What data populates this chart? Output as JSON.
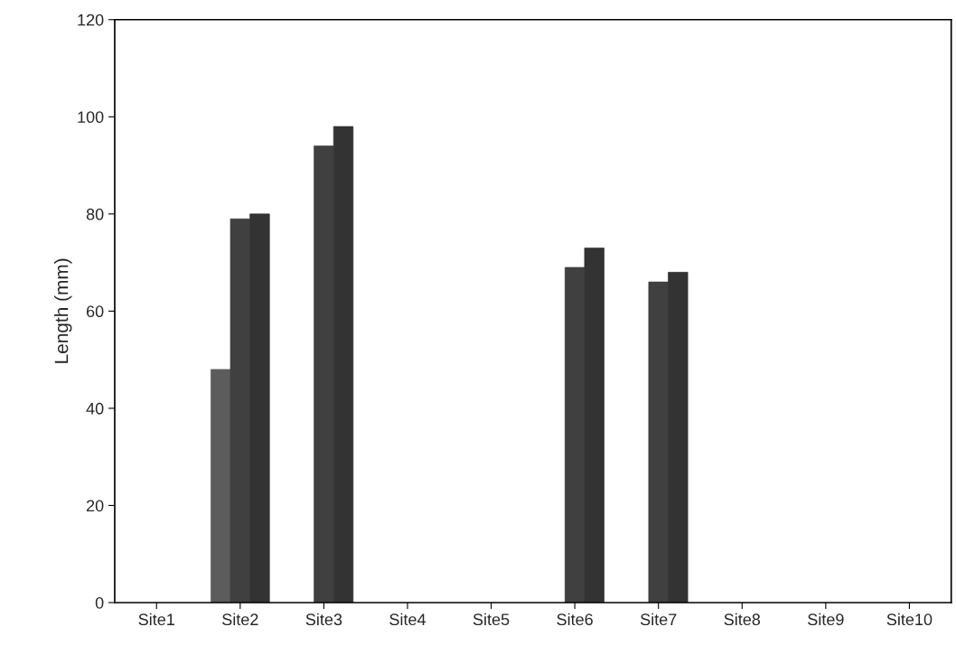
{
  "chart_data": {
    "type": "bar",
    "ylabel": "Length (mm)",
    "categories": [
      "Site1",
      "Site2",
      "Site3",
      "Site4",
      "Site5",
      "Site6",
      "Site7",
      "Site8",
      "Site9",
      "Site10"
    ],
    "series": [
      {
        "color": "#5c5c5c",
        "values": [
          null,
          48,
          null,
          null,
          null,
          null,
          null,
          null,
          null,
          null
        ]
      },
      {
        "color": "#404040",
        "values": [
          null,
          79,
          94,
          null,
          null,
          69,
          66,
          null,
          null,
          null
        ]
      },
      {
        "color": "#333333",
        "values": [
          null,
          80,
          98,
          null,
          null,
          73,
          68,
          null,
          null,
          null
        ]
      }
    ],
    "ylim": [
      0,
      120
    ],
    "yticks": [
      0,
      20,
      40,
      60,
      80,
      100,
      120
    ],
    "grid": false,
    "legend": false
  }
}
